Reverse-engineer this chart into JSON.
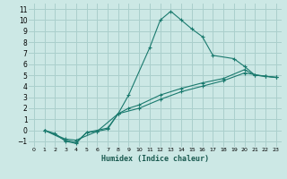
{
  "xlabel": "Humidex (Indice chaleur)",
  "bg_color": "#cce8e5",
  "grid_color": "#aacfcc",
  "line_color": "#1a7a6e",
  "xlim": [
    -0.5,
    23.5
  ],
  "ylim": [
    -1.5,
    11.5
  ],
  "xticks": [
    0,
    1,
    2,
    3,
    4,
    5,
    6,
    7,
    8,
    9,
    10,
    11,
    12,
    13,
    14,
    15,
    16,
    17,
    18,
    19,
    20,
    21,
    22,
    23
  ],
  "yticks": [
    -1,
    0,
    1,
    2,
    3,
    4,
    5,
    6,
    7,
    8,
    9,
    10,
    11
  ],
  "series": [
    {
      "x": [
        1,
        2,
        3,
        4,
        5,
        6,
        7,
        8,
        9,
        11,
        12,
        13,
        14,
        15,
        16,
        17,
        19,
        20,
        21,
        22,
        23
      ],
      "y": [
        0,
        -0.3,
        -1,
        -1.2,
        -0.2,
        -0.1,
        0.1,
        1.5,
        3.2,
        7.5,
        10,
        10.8,
        10,
        9.2,
        8.5,
        6.8,
        6.5,
        5.8,
        5.0,
        4.9,
        4.8
      ]
    },
    {
      "x": [
        1,
        3,
        4,
        5,
        7,
        8,
        9,
        10,
        12,
        14,
        16,
        18,
        20,
        21,
        22,
        23
      ],
      "y": [
        0,
        -0.9,
        -1.1,
        -0.2,
        0.2,
        1.5,
        2.0,
        2.3,
        3.2,
        3.8,
        4.3,
        4.7,
        5.5,
        5.0,
        4.9,
        4.8
      ]
    },
    {
      "x": [
        1,
        3,
        4,
        6,
        8,
        10,
        12,
        14,
        16,
        18,
        20,
        22,
        23
      ],
      "y": [
        0,
        -0.8,
        -0.9,
        -0.1,
        1.5,
        2.0,
        2.8,
        3.5,
        4.0,
        4.5,
        5.2,
        4.9,
        4.8
      ]
    }
  ]
}
